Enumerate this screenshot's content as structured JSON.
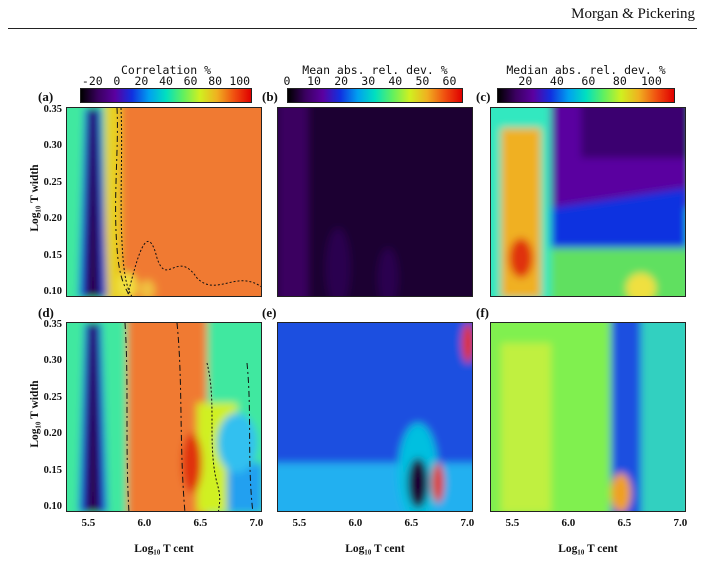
{
  "header": {
    "running_head": "Morgan & Pickering"
  },
  "colorbars": [
    {
      "title": "Correlation %",
      "ticks": [
        "-20",
        "0",
        "20",
        "40",
        "60",
        "80",
        "100"
      ],
      "range": [
        -30,
        110
      ]
    },
    {
      "title": "Mean abs. rel. dev. %",
      "ticks": [
        "0",
        "10",
        "20",
        "30",
        "40",
        "50",
        "60"
      ],
      "range": [
        0,
        65
      ]
    },
    {
      "title": "Median abs. rel. dev. %",
      "ticks": [
        "20",
        "40",
        "60",
        "80",
        "100"
      ],
      "range": [
        2,
        115
      ]
    }
  ],
  "panels": [
    {
      "label": "(a)"
    },
    {
      "label": "(b)"
    },
    {
      "label": "(c)"
    },
    {
      "label": "(d)"
    },
    {
      "label": "(e)"
    },
    {
      "label": "(f)"
    }
  ],
  "axes": {
    "y_title": "Log₁₀ T width",
    "x_title": "Log₁₀ T cent",
    "y_ticks": [
      "0.35",
      "0.30",
      "0.25",
      "0.20",
      "0.15",
      "0.10"
    ],
    "x_ticks": [
      "5.5",
      "6.0",
      "6.5",
      "7.0"
    ],
    "x_range": [
      5.3,
      7.05
    ],
    "y_range": [
      0.095,
      0.355
    ]
  },
  "colors": {
    "colormap": [
      "#000000",
      "#3a0060",
      "#5b00a0",
      "#1030e0",
      "#00a0f0",
      "#00e0c0",
      "#60f060",
      "#d0f020",
      "#f0b020",
      "#f05010",
      "#e00000"
    ]
  }
}
